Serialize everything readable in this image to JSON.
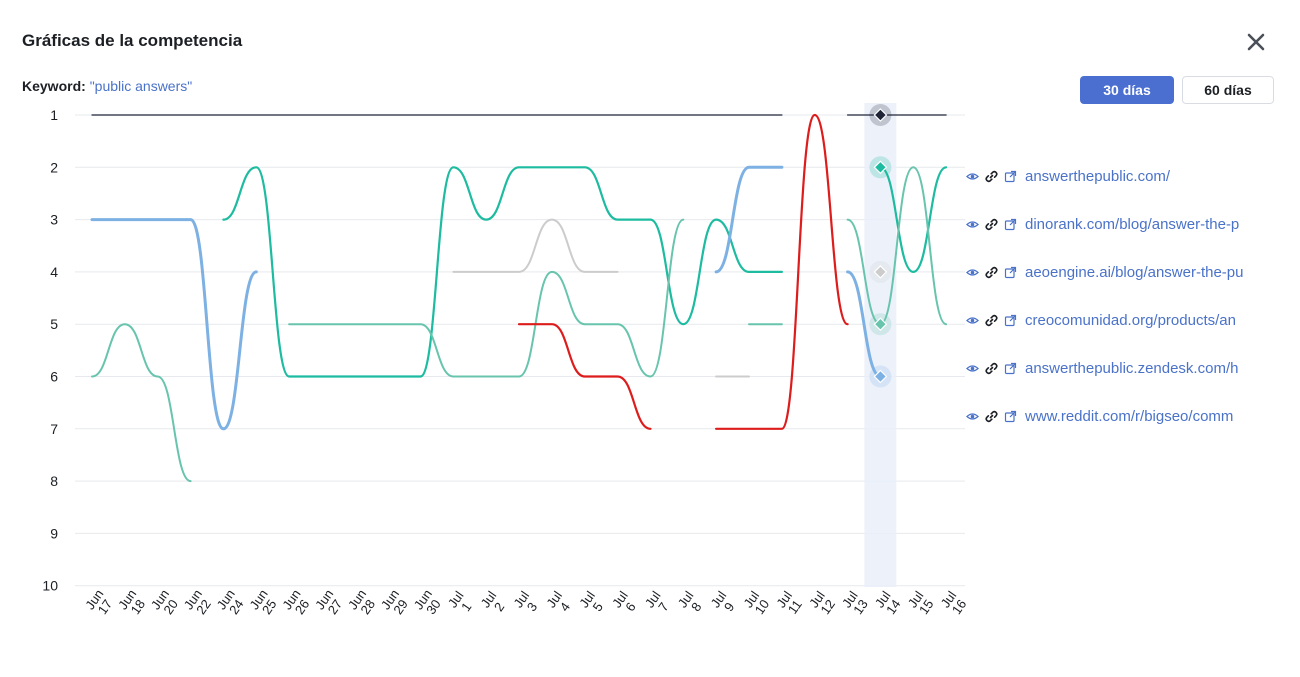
{
  "modal": {
    "title": "Gráficas de la competencia",
    "close_icon": "close-icon"
  },
  "keyword": {
    "label": "Keyword:",
    "value": "\"public answers\""
  },
  "period_buttons": {
    "active": "30 días",
    "inactive": "60 días"
  },
  "colors": {
    "accent": "#4a6fd1",
    "link": "#4a72c9"
  },
  "legend": [
    {
      "url": "answerthepublic.com/"
    },
    {
      "url": "dinorank.com/blog/answer-the-p"
    },
    {
      "url": "aeoengine.ai/blog/answer-the-pu"
    },
    {
      "url": "creocomunidad.org/products/an"
    },
    {
      "url": "answerthepublic.zendesk.com/h"
    },
    {
      "url": "www.reddit.com/r/bigseo/comm"
    }
  ],
  "chart_data": {
    "type": "line",
    "y_axis": {
      "reversed": true,
      "min": 1,
      "max": 10,
      "ticks": [
        1,
        2,
        3,
        4,
        5,
        6,
        7,
        8,
        9,
        10
      ]
    },
    "x": [
      "Jun 17",
      "Jun 18",
      "Jun 20",
      "Jun 22",
      "Jun 24",
      "Jun 25",
      "Jun 26",
      "Jun 27",
      "Jun 28",
      "Jun 29",
      "Jun 30",
      "Jul 1",
      "Jul 2",
      "Jul 3",
      "Jul 4",
      "Jul 5",
      "Jul 6",
      "Jul 7",
      "Jul 8",
      "Jul 9",
      "Jul 10",
      "Jul 11",
      "Jul 12",
      "Jul 13",
      "Jul 14",
      "Jul 15",
      "Jul 16"
    ],
    "x_labels": [
      [
        "Jun",
        "17"
      ],
      [
        "Jun",
        "18"
      ],
      [
        "Jun",
        "20"
      ],
      [
        "Jun",
        "22"
      ],
      [
        "Jun",
        "24"
      ],
      [
        "Jun",
        "25"
      ],
      [
        "Jun",
        "26"
      ],
      [
        "Jun",
        "27"
      ],
      [
        "Jun",
        "28"
      ],
      [
        "Jun",
        "29"
      ],
      [
        "Jun",
        "30"
      ],
      [
        "Jul",
        "1"
      ],
      [
        "Jul",
        "2"
      ],
      [
        "Jul",
        "3"
      ],
      [
        "Jul",
        "4"
      ],
      [
        "Jul",
        "5"
      ],
      [
        "Jul",
        "6"
      ],
      [
        "Jul",
        "7"
      ],
      [
        "Jul",
        "8"
      ],
      [
        "Jul",
        "9"
      ],
      [
        "Jul",
        "10"
      ],
      [
        "Jul",
        "11"
      ],
      [
        "Jul",
        "12"
      ],
      [
        "Jul",
        "13"
      ],
      [
        "Jul",
        "14"
      ],
      [
        "Jul",
        "15"
      ],
      [
        "Jul",
        "16"
      ]
    ],
    "highlight_index": 24,
    "grid": true,
    "series": [
      {
        "color": "#1f2437",
        "width": 1.3,
        "values": [
          1,
          1,
          1,
          1,
          1,
          1,
          1,
          1,
          1,
          1,
          1,
          1,
          1,
          1,
          1,
          1,
          1,
          1,
          1,
          1,
          1,
          1,
          null,
          1,
          1,
          1,
          1
        ]
      },
      {
        "color": "#1dbba0",
        "width": 2.2,
        "values": [
          null,
          null,
          null,
          null,
          3,
          2,
          6,
          6,
          6,
          6,
          6,
          2,
          3,
          2,
          2,
          2,
          3,
          3,
          5,
          3,
          4,
          4,
          null,
          null,
          2,
          4,
          2
        ]
      },
      {
        "color": "#cccccc",
        "width": 2.0,
        "values": [
          null,
          null,
          null,
          null,
          null,
          null,
          null,
          null,
          null,
          null,
          null,
          4,
          4,
          4,
          3,
          4,
          4,
          null,
          null,
          6,
          6,
          null,
          null,
          null,
          4,
          null,
          null
        ]
      },
      {
        "color": "#68c4ad",
        "width": 2.0,
        "values": [
          6,
          5,
          6,
          8,
          null,
          null,
          5,
          5,
          5,
          5,
          5,
          6,
          6,
          6,
          4,
          5,
          5,
          6,
          3,
          null,
          5,
          5,
          null,
          3,
          5,
          2,
          5
        ]
      },
      {
        "color": "#7eb1e3",
        "width": 3.0,
        "values": [
          3,
          3,
          3,
          3,
          7,
          4,
          null,
          null,
          null,
          null,
          null,
          null,
          null,
          null,
          null,
          null,
          null,
          null,
          null,
          4,
          2,
          2,
          null,
          4,
          6,
          null,
          null
        ]
      },
      {
        "color": "#dd1c1c",
        "width": 2.2,
        "values": [
          null,
          null,
          null,
          null,
          null,
          null,
          null,
          null,
          null,
          null,
          null,
          null,
          null,
          5,
          5,
          6,
          6,
          7,
          null,
          7,
          7,
          7,
          1,
          5,
          null,
          null,
          null
        ]
      }
    ]
  }
}
